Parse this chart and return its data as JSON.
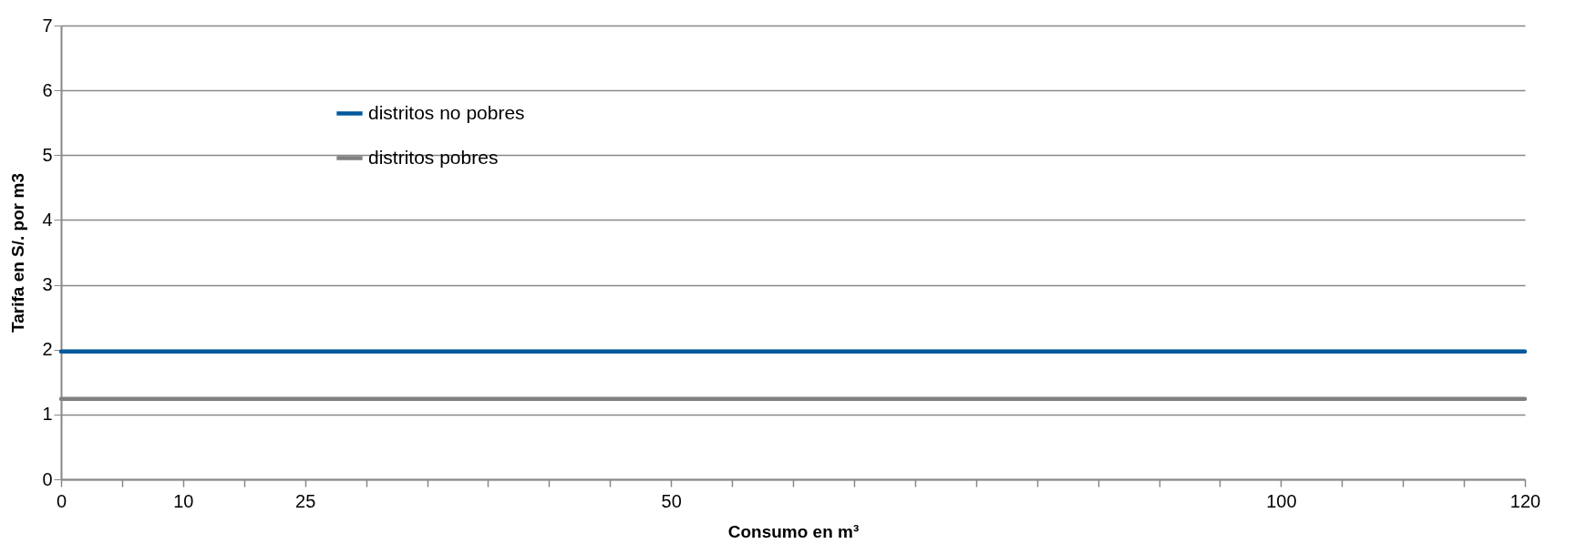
{
  "chart_data": {
    "type": "line",
    "xlabel": "Consumo en m³",
    "ylabel": "Tarifa en S/. por m3",
    "categories": [
      "0",
      null,
      "10",
      null,
      "25",
      null,
      null,
      null,
      null,
      null,
      "50",
      null,
      null,
      null,
      null,
      null,
      null,
      null,
      null,
      null,
      "100",
      null,
      null,
      null,
      "120"
    ],
    "series": [
      {
        "name": "distritos no pobres",
        "color": "#00589c",
        "values": [
          1.97,
          1.97,
          1.97,
          1.97,
          1.97,
          1.97,
          1.97,
          1.97,
          1.97,
          1.97,
          1.97,
          1.97,
          1.97,
          1.97,
          1.97,
          1.97,
          1.97,
          1.97,
          1.97,
          1.97,
          1.97,
          1.97,
          1.97,
          1.97,
          1.97
        ]
      },
      {
        "name": "distritos pobres",
        "color": "#808080",
        "values": [
          1.24,
          1.24,
          1.24,
          1.24,
          1.24,
          1.24,
          1.24,
          1.24,
          1.24,
          1.24,
          1.24,
          1.24,
          1.24,
          1.24,
          1.24,
          1.24,
          1.24,
          1.24,
          1.24,
          1.24,
          1.24,
          1.24,
          1.24,
          1.24,
          1.24
        ]
      }
    ],
    "ylim": [
      0,
      7
    ],
    "yticks": [
      0,
      1,
      2,
      3,
      4,
      5,
      6,
      7
    ],
    "grid": "y",
    "legend": "top left",
    "marker": "none",
    "line_style": "solid"
  }
}
